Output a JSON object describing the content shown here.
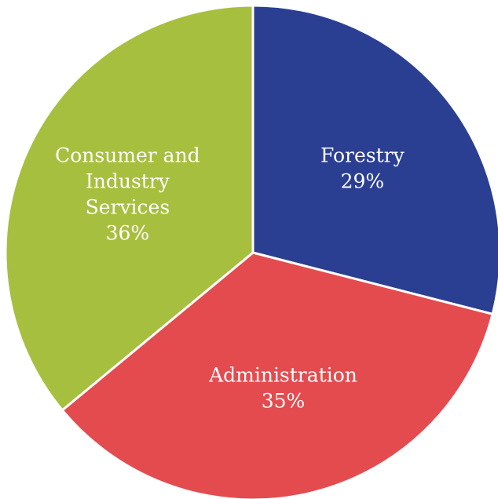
{
  "chart_data": {
    "type": "pie",
    "title": "",
    "slices": [
      {
        "label_lines": [
          "Forestry"
        ],
        "percent_label": "29%",
        "value": 29,
        "color": "#2a3f92"
      },
      {
        "label_lines": [
          "Administration"
        ],
        "percent_label": "35%",
        "value": 35,
        "color": "#e44b4f"
      },
      {
        "label_lines": [
          "Consumer and",
          "Industry",
          "Services"
        ],
        "percent_label": "36%",
        "value": 36,
        "color": "#a7bf3f"
      }
    ],
    "start_angle_deg": 0,
    "direction": "clockwise"
  }
}
